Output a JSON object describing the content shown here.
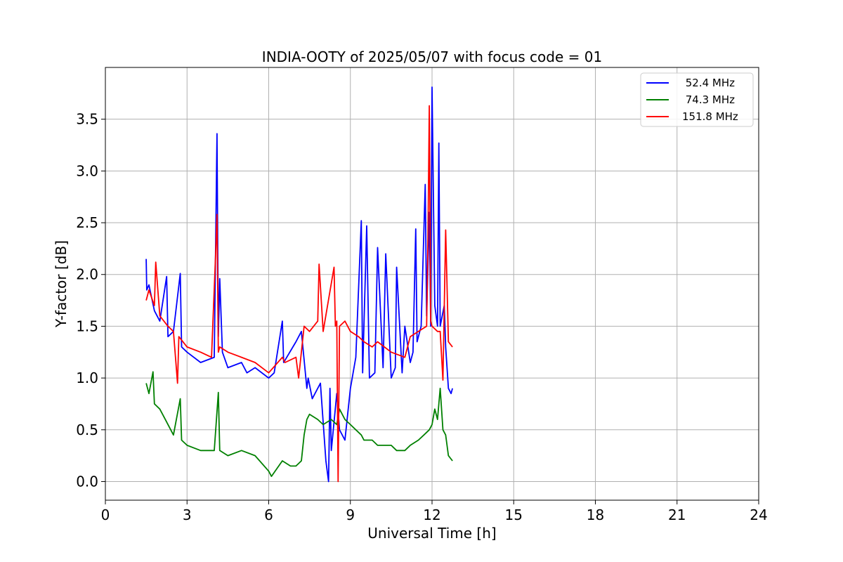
{
  "chart_data": {
    "type": "line",
    "title": "INDIA-OOTY of 2025/05/07 with focus code = 01",
    "xlabel": "Universal Time [h]",
    "ylabel": "Y-factor [dB]",
    "xlim": [
      0,
      24
    ],
    "ylim": [
      -0.18,
      4.0
    ],
    "xticks": [
      0,
      3,
      6,
      9,
      12,
      15,
      18,
      21,
      24
    ],
    "yticks": [
      0.0,
      0.5,
      1.0,
      1.5,
      2.0,
      2.5,
      3.0,
      3.5
    ],
    "xtick_labels": [
      "0",
      "3",
      "6",
      "9",
      "12",
      "15",
      "18",
      "21",
      "24"
    ],
    "ytick_labels": [
      "0.0",
      "0.5",
      "1.0",
      "1.5",
      "2.0",
      "2.5",
      "3.0",
      "3.5"
    ],
    "grid": true,
    "legend_position": "top-right",
    "series": [
      {
        "name": " 52.4 MHz",
        "color": "#0000ff",
        "x": [
          1.5,
          1.52,
          1.6,
          1.8,
          2.0,
          2.25,
          2.3,
          2.5,
          2.75,
          2.8,
          3.0,
          3.5,
          4.0,
          4.1,
          4.15,
          4.2,
          4.3,
          4.5,
          5.0,
          5.2,
          5.5,
          6.0,
          6.2,
          6.5,
          6.55,
          7.0,
          7.2,
          7.4,
          7.45,
          7.6,
          7.9,
          8.1,
          8.2,
          8.25,
          8.3,
          8.5,
          8.6,
          8.8,
          9.0,
          9.2,
          9.4,
          9.45,
          9.6,
          9.7,
          9.9,
          10.0,
          10.2,
          10.3,
          10.5,
          10.65,
          10.7,
          10.9,
          11.0,
          11.2,
          11.3,
          11.4,
          11.45,
          11.6,
          11.75,
          11.8,
          11.9,
          11.95,
          12.0,
          12.1,
          12.2,
          12.25,
          12.3,
          12.45,
          12.5,
          12.6,
          12.7,
          12.75
        ],
        "y": [
          2.15,
          1.85,
          1.9,
          1.65,
          1.55,
          1.98,
          1.4,
          1.45,
          2.01,
          1.3,
          1.25,
          1.15,
          1.2,
          3.36,
          1.4,
          1.96,
          1.25,
          1.1,
          1.15,
          1.05,
          1.1,
          1.0,
          1.05,
          1.55,
          1.15,
          1.35,
          1.45,
          0.9,
          1.0,
          0.8,
          0.95,
          0.2,
          0.0,
          0.9,
          0.3,
          0.85,
          0.5,
          0.4,
          0.9,
          1.2,
          2.52,
          1.05,
          2.47,
          1.0,
          1.05,
          2.26,
          1.1,
          2.2,
          1.0,
          1.1,
          2.07,
          1.05,
          1.5,
          1.15,
          1.25,
          2.44,
          1.35,
          1.5,
          2.87,
          1.6,
          2.6,
          1.5,
          3.81,
          1.7,
          1.5,
          3.27,
          1.5,
          1.7,
          1.3,
          0.9,
          0.85,
          0.9
        ]
      },
      {
        "name": " 74.3 MHz",
        "color": "#008000",
        "x": [
          1.5,
          1.6,
          1.75,
          1.8,
          2.0,
          2.2,
          2.5,
          2.75,
          2.8,
          3.0,
          3.5,
          4.0,
          4.15,
          4.2,
          4.5,
          5.0,
          5.5,
          6.0,
          6.1,
          6.5,
          6.8,
          7.0,
          7.2,
          7.3,
          7.4,
          7.5,
          7.8,
          8.0,
          8.3,
          8.5,
          8.6,
          8.8,
          9.0,
          9.2,
          9.4,
          9.5,
          9.8,
          10.0,
          10.3,
          10.5,
          10.7,
          11.0,
          11.2,
          11.5,
          11.7,
          11.9,
          12.0,
          12.1,
          12.2,
          12.3,
          12.4,
          12.5,
          12.6,
          12.75
        ],
        "y": [
          0.95,
          0.85,
          1.06,
          0.75,
          0.7,
          0.6,
          0.45,
          0.8,
          0.4,
          0.35,
          0.3,
          0.3,
          0.86,
          0.3,
          0.25,
          0.3,
          0.25,
          0.1,
          0.05,
          0.2,
          0.15,
          0.15,
          0.2,
          0.45,
          0.6,
          0.65,
          0.6,
          0.55,
          0.6,
          0.55,
          0.7,
          0.6,
          0.55,
          0.5,
          0.45,
          0.4,
          0.4,
          0.35,
          0.35,
          0.35,
          0.3,
          0.3,
          0.35,
          0.4,
          0.45,
          0.5,
          0.55,
          0.7,
          0.6,
          0.9,
          0.5,
          0.45,
          0.25,
          0.2
        ]
      },
      {
        "name": "151.8 MHz",
        "color": "#ff0000",
        "x": [
          1.5,
          1.6,
          1.8,
          1.85,
          2.0,
          2.3,
          2.5,
          2.65,
          2.7,
          3.0,
          3.5,
          3.9,
          4.05,
          4.1,
          4.15,
          4.2,
          4.5,
          5.0,
          5.5,
          6.0,
          6.5,
          6.6,
          7.0,
          7.1,
          7.3,
          7.5,
          7.8,
          7.85,
          8.0,
          8.4,
          8.45,
          8.5,
          8.55,
          8.6,
          8.8,
          9.0,
          9.3,
          9.5,
          9.8,
          10.0,
          10.5,
          11.0,
          11.2,
          11.5,
          11.8,
          11.85,
          11.9,
          11.95,
          12.0,
          12.2,
          12.3,
          12.4,
          12.5,
          12.6,
          12.75
        ],
        "y": [
          1.75,
          1.85,
          1.7,
          2.12,
          1.6,
          1.5,
          1.45,
          0.95,
          1.4,
          1.3,
          1.25,
          1.2,
          2.19,
          2.58,
          1.25,
          1.3,
          1.25,
          1.2,
          1.15,
          1.05,
          1.2,
          1.15,
          1.2,
          1.0,
          1.5,
          1.45,
          1.55,
          2.1,
          1.45,
          2.07,
          1.5,
          1.55,
          0.0,
          1.5,
          1.55,
          1.45,
          1.4,
          1.35,
          1.3,
          1.35,
          1.25,
          1.2,
          1.4,
          1.45,
          1.5,
          2.35,
          3.63,
          1.55,
          1.5,
          1.45,
          1.45,
          0.98,
          2.43,
          1.35,
          1.3
        ]
      }
    ]
  }
}
